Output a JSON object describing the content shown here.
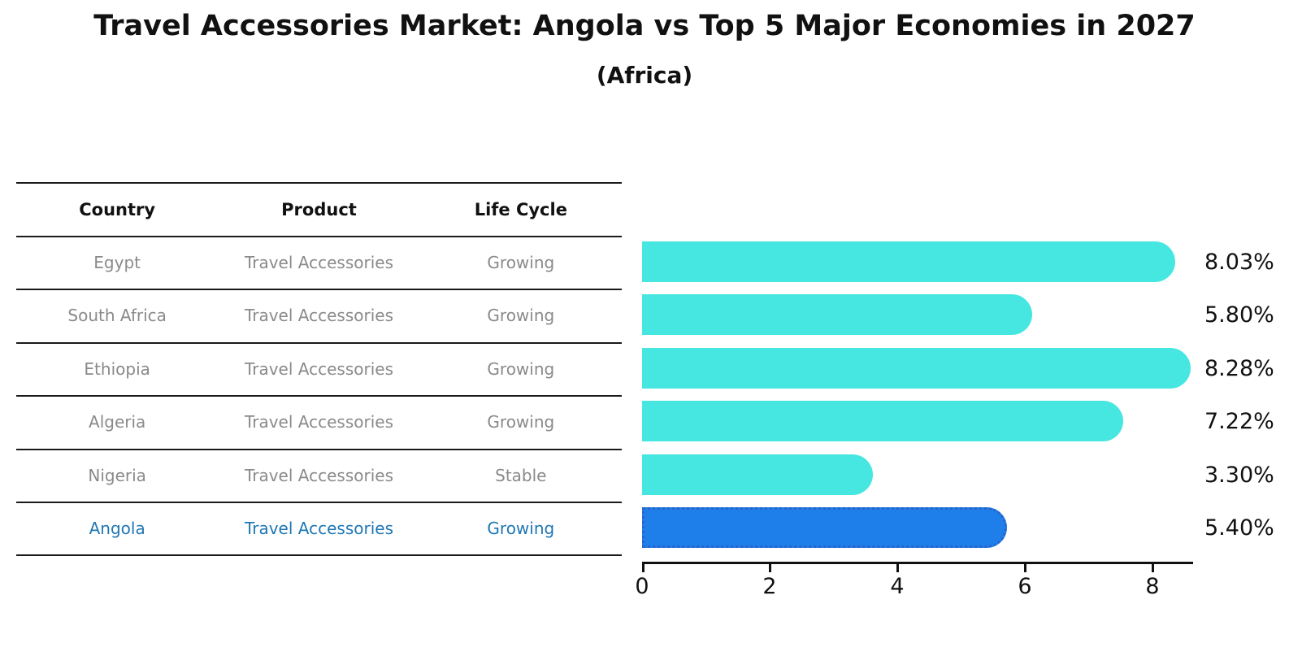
{
  "title": "Travel Accessories Market: Angola vs Top 5 Major Economies in 2027",
  "subtitle": "(Africa)",
  "table": {
    "headers": [
      "Country",
      "Product",
      "Life Cycle"
    ],
    "rows": [
      {
        "country": "Egypt",
        "product": "Travel Accessories",
        "life_cycle": "Growing",
        "highlighted": false
      },
      {
        "country": "South Africa",
        "product": "Travel Accessories",
        "life_cycle": "Growing",
        "highlighted": false
      },
      {
        "country": "Ethiopia",
        "product": "Travel Accessories",
        "life_cycle": "Growing",
        "highlighted": false
      },
      {
        "country": "Algeria",
        "product": "Travel Accessories",
        "life_cycle": "Growing",
        "highlighted": false
      },
      {
        "country": "Nigeria",
        "product": "Travel Accessories",
        "life_cycle": "Stable",
        "highlighted": false
      },
      {
        "country": "Angola",
        "product": "Travel Accessories",
        "life_cycle": "Growing",
        "highlighted": true
      }
    ]
  },
  "chart_data": {
    "type": "bar",
    "orientation": "horizontal",
    "title": "Travel Accessories Market: Angola vs Top 5 Major Economies in 2027",
    "subtitle": "(Africa)",
    "categories": [
      "Egypt",
      "South Africa",
      "Ethiopia",
      "Algeria",
      "Nigeria",
      "Angola"
    ],
    "values": [
      8.03,
      5.8,
      8.28,
      7.22,
      3.3,
      5.4
    ],
    "value_labels": [
      "8.03%",
      "5.80%",
      "8.28%",
      "7.22%",
      "3.30%",
      "5.40%"
    ],
    "xlabel": "",
    "ylabel": "",
    "xlim": [
      0,
      8.66
    ],
    "x_ticks": [
      0,
      2,
      4,
      6,
      8
    ],
    "grid": false,
    "legend": false,
    "highlight_category": "Angola",
    "bar_color": "#46e7e1",
    "highlight_color": "#1e7fea",
    "highlight_border_color": "#2a64c8",
    "text_color": "#111111",
    "muted_text_color": "#8a8a8a",
    "highlight_text_color": "#1f77b4"
  }
}
